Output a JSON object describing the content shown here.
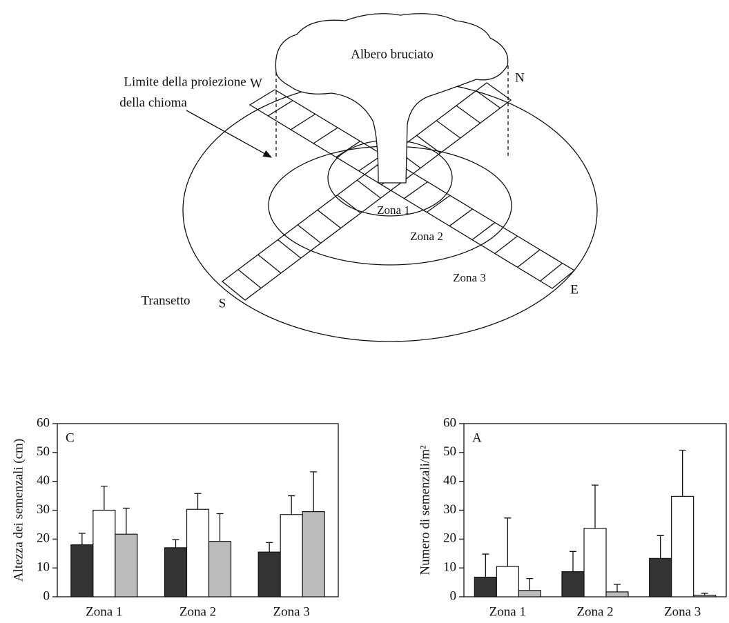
{
  "diagram": {
    "title": "Albero bruciato",
    "canopy_label_1": "Limite della proiezione",
    "canopy_label_2": "della chioma",
    "west": "W",
    "north": "N",
    "south": "S",
    "east": "E",
    "zone_1": "Zona 1",
    "zone_2": "Zona 2",
    "zone_3": "Zona 3",
    "transect": "Transetto"
  },
  "chart_data": [
    {
      "type": "bar",
      "panel_label": "C",
      "y_label": "Altezza dei semenzali (cm)",
      "categories": [
        "Zona 1",
        "Zona 2",
        "Zona 3"
      ],
      "series": [
        {
          "color": "#333333",
          "values": [
            18,
            17,
            15.5
          ],
          "errors": [
            4,
            2.8,
            3.3
          ]
        },
        {
          "color": "#ffffff",
          "values": [
            30,
            30.3,
            28.5
          ],
          "errors": [
            8.3,
            5.5,
            6.5
          ]
        },
        {
          "color": "#bbbbbb",
          "values": [
            21.7,
            19.2,
            29.5
          ],
          "errors": [
            9,
            9.6,
            13.8
          ]
        }
      ],
      "ylim": [
        0,
        60
      ],
      "yticks": [
        0,
        10,
        20,
        30,
        40,
        50,
        60
      ]
    },
    {
      "type": "bar",
      "panel_label": "A",
      "y_label": "Numero di semenzali/m²",
      "categories": [
        "Zona 1",
        "Zona 2",
        "Zona 3"
      ],
      "series": [
        {
          "color": "#333333",
          "values": [
            6.8,
            8.7,
            13.3
          ],
          "errors": [
            8,
            7,
            7.9
          ]
        },
        {
          "color": "#ffffff",
          "values": [
            10.5,
            23.7,
            34.8
          ],
          "errors": [
            16.8,
            15,
            16
          ]
        },
        {
          "color": "#bbbbbb",
          "values": [
            2.2,
            1.7,
            0.5
          ],
          "errors": [
            4.1,
            2.6,
            0.7
          ]
        }
      ],
      "ylim": [
        0,
        60
      ],
      "yticks": [
        0,
        10,
        20,
        30,
        40,
        50,
        60
      ]
    }
  ]
}
